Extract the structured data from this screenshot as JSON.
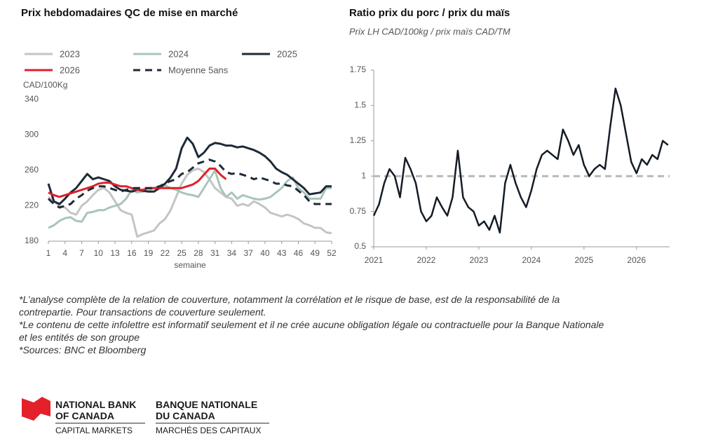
{
  "chart_data": [
    {
      "type": "line",
      "title": "Prix hebdomadaires QC de mise en marché",
      "y_label": "CAD/100Kg",
      "x_label": "semaine",
      "legend": "top",
      "x": [
        1,
        2,
        3,
        4,
        5,
        6,
        7,
        8,
        9,
        10,
        11,
        12,
        13,
        14,
        15,
        16,
        17,
        18,
        19,
        20,
        21,
        22,
        23,
        24,
        25,
        26,
        27,
        28,
        29,
        30,
        31,
        32,
        33,
        34,
        35,
        36,
        37,
        38,
        39,
        40,
        41,
        42,
        43,
        44,
        45,
        46,
        47,
        48,
        49,
        50,
        51,
        52
      ],
      "xlim": [
        1,
        52
      ],
      "xticks": [
        1,
        4,
        7,
        10,
        13,
        16,
        19,
        22,
        25,
        28,
        31,
        34,
        37,
        40,
        43,
        46,
        49,
        52
      ],
      "ylim": [
        180,
        340
      ],
      "yticks": [
        180,
        220,
        260,
        300,
        340
      ],
      "series": [
        {
          "name": "2023",
          "color": "#c4c4c4",
          "values": [
            230,
            225,
            220,
            218,
            212,
            210,
            220,
            225,
            232,
            238,
            240,
            235,
            225,
            215,
            212,
            210,
            185,
            188,
            190,
            192,
            200,
            205,
            215,
            230,
            245,
            255,
            260,
            262,
            258,
            250,
            240,
            235,
            230,
            228,
            220,
            222,
            220,
            225,
            222,
            218,
            212,
            210,
            208,
            210,
            208,
            205,
            200,
            198,
            195,
            195,
            190,
            189
          ]
        },
        {
          "name": "2024",
          "color": "#a8c5b8",
          "values": [
            195,
            198,
            203,
            206,
            207,
            203,
            202,
            212,
            213,
            215,
            215,
            218,
            220,
            222,
            228,
            238,
            235,
            236,
            237,
            240,
            242,
            243,
            240,
            238,
            235,
            233,
            232,
            230,
            240,
            250,
            260,
            240,
            230,
            235,
            228,
            232,
            230,
            228,
            227,
            228,
            230,
            235,
            240,
            248,
            252,
            240,
            235,
            228,
            228,
            228,
            240,
            240
          ]
        },
        {
          "name": "2025",
          "color": "#1e2a38",
          "values": [
            245,
            225,
            222,
            228,
            235,
            240,
            248,
            256,
            250,
            252,
            250,
            248,
            242,
            238,
            237,
            236,
            238,
            237,
            236,
            236,
            240,
            245,
            252,
            262,
            285,
            297,
            290,
            275,
            280,
            288,
            291,
            290,
            288,
            288,
            286,
            287,
            285,
            283,
            280,
            276,
            270,
            262,
            258,
            255,
            250,
            245,
            240,
            233,
            234,
            235,
            242,
            242
          ]
        },
        {
          "name": "2026",
          "color": "#e0202a",
          "values": [
            235,
            232,
            230,
            232,
            234,
            236,
            238,
            240,
            242,
            245,
            246,
            246,
            244,
            242,
            242,
            240,
            238,
            238,
            240,
            240,
            240,
            240,
            240,
            240,
            240,
            242,
            244,
            248,
            255,
            262,
            262,
            255,
            250,
            null,
            null,
            null,
            null,
            null,
            null,
            null,
            null,
            null,
            null,
            null,
            null,
            null,
            null,
            null,
            null,
            null,
            null,
            null
          ]
        },
        {
          "name": "Moyenne 5ans",
          "color": "#1e2a38",
          "style": "dashed",
          "values": [
            228,
            222,
            218,
            220,
            222,
            228,
            232,
            237,
            240,
            242,
            242,
            240,
            238,
            236,
            238,
            240,
            240,
            240,
            240,
            240,
            242,
            245,
            248,
            250,
            256,
            258,
            263,
            268,
            270,
            272,
            270,
            265,
            258,
            256,
            257,
            255,
            253,
            250,
            252,
            250,
            248,
            245,
            245,
            243,
            242,
            237,
            232,
            225,
            222,
            222,
            222,
            222
          ]
        }
      ]
    },
    {
      "type": "line",
      "title": "Ratio prix du porc / prix du maïs",
      "subtitle": "Prix LH CAD/100kg / prix maïs CAD/TM",
      "x": [
        2021.0,
        2021.1,
        2021.2,
        2021.3,
        2021.4,
        2021.5,
        2021.6,
        2021.7,
        2021.8,
        2021.9,
        2022.0,
        2022.1,
        2022.2,
        2022.3,
        2022.4,
        2022.5,
        2022.6,
        2022.7,
        2022.8,
        2022.9,
        2023.0,
        2023.1,
        2023.2,
        2023.3,
        2023.4,
        2023.5,
        2023.6,
        2023.7,
        2023.8,
        2023.9,
        2024.0,
        2024.1,
        2024.2,
        2024.3,
        2024.4,
        2024.5,
        2024.6,
        2024.7,
        2024.8,
        2024.9,
        2025.0,
        2025.1,
        2025.2,
        2025.3,
        2025.4,
        2025.5,
        2025.6,
        2025.7,
        2025.8,
        2025.9,
        2026.0,
        2026.1,
        2026.2,
        2026.3,
        2026.4,
        2026.5,
        2026.6
      ],
      "values": [
        0.72,
        0.8,
        0.95,
        1.05,
        1.0,
        0.85,
        1.13,
        1.05,
        0.95,
        0.75,
        0.68,
        0.72,
        0.85,
        0.78,
        0.72,
        0.85,
        1.18,
        0.85,
        0.78,
        0.75,
        0.65,
        0.68,
        0.62,
        0.72,
        0.6,
        0.95,
        1.08,
        0.95,
        0.85,
        0.78,
        0.9,
        1.05,
        1.15,
        1.18,
        1.15,
        1.12,
        1.33,
        1.25,
        1.15,
        1.22,
        1.08,
        1.0,
        1.05,
        1.08,
        1.05,
        1.35,
        1.62,
        1.5,
        1.3,
        1.1,
        1.02,
        1.12,
        1.08,
        1.15,
        1.12,
        1.25,
        1.22
      ],
      "color": "#141c26",
      "xlim": [
        2021,
        2026.63
      ],
      "xticks": [
        2021,
        2022,
        2023,
        2024,
        2025,
        2026
      ],
      "ylim": [
        0.5,
        1.75
      ],
      "yticks": [
        0.5,
        0.75,
        1,
        1.25,
        1.5,
        1.75
      ],
      "hline": 1,
      "hline_color": "#b8b8b8"
    }
  ],
  "notes": [
    "*L’analyse complète de la relation de couverture, notamment la corrélation et le risque de base, est de la responsabilité de la contrepartie. Pour transactions de couverture seulement.",
    "*Le contenu de cette infolettre est informatif seulement et il ne crée aucune obligation légale ou contractuelle pour la Banque Nationale et les entités de son groupe",
    "*Sources: BNC et Bloomberg"
  ],
  "logo": {
    "en_name_1": "NATIONAL BANK",
    "en_name_2": "OF CANADA",
    "en_division": "CAPITAL MARKETS",
    "fr_name_1": "BANQUE NATIONALE",
    "fr_name_2": "DU CANADA",
    "fr_division": "MARCHÉS DES CAPITAUX"
  }
}
